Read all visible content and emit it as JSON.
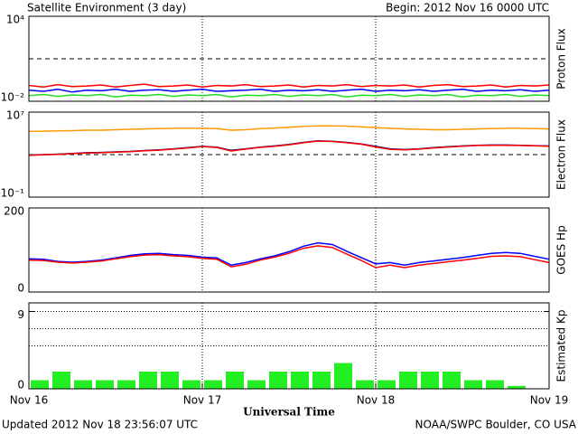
{
  "title": "Satellite Environment (3 day)",
  "begin": "Begin:  2012 Nov 16 0000 UTC",
  "updated": "Updated 2012 Nov 18 23:56:07 UTC",
  "credit": "NOAA/SWPC Boulder, CO USA",
  "xlabel": "Universal Time",
  "chart_data": [
    {
      "type": "line",
      "ylabel": "Proton Flux",
      "log": true,
      "ylim": [
        0.01,
        10000
      ],
      "yticks": [
        {
          "value": 10000,
          "label": "10⁴"
        },
        {
          "value": 0.01,
          "label": "10⁻²"
        }
      ],
      "hlines": [
        10
      ],
      "hline_style": "dashed",
      "xlim": [
        0,
        72
      ],
      "xgrid": [
        24,
        48
      ],
      "x": [
        0,
        2,
        4,
        6,
        8,
        10,
        12,
        14,
        16,
        18,
        20,
        22,
        24,
        26,
        28,
        30,
        32,
        34,
        36,
        38,
        40,
        42,
        44,
        46,
        48,
        50,
        52,
        54,
        56,
        58,
        60,
        62,
        64,
        66,
        68,
        70,
        72
      ],
      "series": [
        {
          "color": "#ff0000",
          "values": [
            0.13,
            0.1,
            0.15,
            0.11,
            0.12,
            0.14,
            0.1,
            0.13,
            0.16,
            0.11,
            0.12,
            0.14,
            0.1,
            0.13,
            0.12,
            0.15,
            0.11,
            0.12,
            0.14,
            0.1,
            0.13,
            0.12,
            0.15,
            0.11,
            0.13,
            0.12,
            0.14,
            0.1,
            0.13,
            0.15,
            0.11,
            0.12,
            0.14,
            0.1,
            0.13,
            0.12,
            0.14
          ]
        },
        {
          "color": "#0000ff",
          "values": [
            0.06,
            0.05,
            0.07,
            0.045,
            0.06,
            0.055,
            0.07,
            0.05,
            0.06,
            0.065,
            0.05,
            0.06,
            0.07,
            0.05,
            0.055,
            0.06,
            0.07,
            0.05,
            0.06,
            0.055,
            0.065,
            0.05,
            0.06,
            0.07,
            0.05,
            0.06,
            0.055,
            0.065,
            0.05,
            0.06,
            0.07,
            0.05,
            0.06,
            0.055,
            0.065,
            0.05,
            0.06
          ]
        },
        {
          "color": "#22dd22",
          "values": [
            0.025,
            0.03,
            0.022,
            0.028,
            0.025,
            0.03,
            0.02,
            0.027,
            0.025,
            0.03,
            0.022,
            0.028,
            0.025,
            0.03,
            0.02,
            0.027,
            0.025,
            0.03,
            0.022,
            0.028,
            0.025,
            0.03,
            0.02,
            0.027,
            0.025,
            0.03,
            0.022,
            0.028,
            0.025,
            0.03,
            0.02,
            0.027,
            0.025,
            0.03,
            0.022,
            0.028,
            0.025
          ]
        }
      ]
    },
    {
      "type": "line",
      "ylabel": "Electron Flux",
      "log": true,
      "ylim": [
        0.1,
        10000000
      ],
      "yticks": [
        {
          "value": 10000000,
          "label": "10⁷"
        },
        {
          "value": 0.1,
          "label": "10⁻¹"
        }
      ],
      "hlines": [
        1000
      ],
      "hline_style": "dashed",
      "xlim": [
        0,
        72
      ],
      "xgrid": [
        24,
        48
      ],
      "x": [
        0,
        2,
        4,
        6,
        8,
        10,
        12,
        14,
        16,
        18,
        20,
        22,
        24,
        26,
        28,
        30,
        32,
        34,
        36,
        38,
        40,
        42,
        44,
        46,
        48,
        50,
        52,
        54,
        56,
        58,
        60,
        62,
        64,
        66,
        68,
        70,
        72
      ],
      "series": [
        {
          "color": "#ff9900",
          "values": [
            150000,
            160000,
            170000,
            180000,
            200000,
            200000,
            220000,
            240000,
            260000,
            280000,
            300000,
            300000,
            300000,
            280000,
            200000,
            220000,
            280000,
            320000,
            380000,
            450000,
            500000,
            500000,
            480000,
            420000,
            350000,
            300000,
            260000,
            240000,
            220000,
            220000,
            240000,
            260000,
            280000,
            300000,
            300000,
            280000,
            260000
          ]
        },
        {
          "color": "#000080",
          "values": [
            900,
            1000,
            1100,
            1300,
            1500,
            1600,
            1800,
            2000,
            2400,
            2800,
            3500,
            4500,
            6000,
            5000,
            2500,
            3500,
            5000,
            6500,
            9000,
            14000,
            20000,
            18000,
            14000,
            10000,
            6000,
            3500,
            3000,
            3500,
            4500,
            5500,
            6500,
            7500,
            8000,
            8000,
            7500,
            7000,
            6500
          ]
        },
        {
          "color": "#ff0000",
          "values": [
            850,
            950,
            1050,
            1250,
            1400,
            1500,
            1700,
            1900,
            2300,
            2600,
            3300,
            4300,
            5700,
            4700,
            2200,
            3300,
            4800,
            6200,
            8500,
            13000,
            19000,
            17000,
            13000,
            9500,
            5200,
            3200,
            2800,
            3300,
            4300,
            5200,
            6200,
            7200,
            7600,
            7600,
            7200,
            6700,
            6200
          ]
        }
      ]
    },
    {
      "type": "line",
      "ylabel": "GOES Hp",
      "log": false,
      "ylim": [
        0,
        200
      ],
      "yticks": [
        200,
        0
      ],
      "xlim": [
        0,
        72
      ],
      "xgrid": [
        24,
        48
      ],
      "x": [
        0,
        2,
        4,
        6,
        8,
        10,
        12,
        14,
        16,
        18,
        20,
        22,
        24,
        26,
        28,
        30,
        32,
        34,
        36,
        38,
        40,
        42,
        44,
        46,
        48,
        50,
        52,
        54,
        56,
        58,
        60,
        62,
        64,
        66,
        68,
        70,
        72
      ],
      "series": [
        {
          "color": "#0000ff",
          "values": [
            79,
            78,
            73,
            71,
            73,
            76,
            81,
            87,
            91,
            92,
            89,
            87,
            83,
            81,
            64,
            70,
            79,
            86,
            96,
            109,
            117,
            113,
            97,
            82,
            67,
            70,
            64,
            70,
            74,
            78,
            82,
            87,
            92,
            94,
            92,
            85,
            78
          ]
        },
        {
          "color": "#ff0000",
          "values": [
            76,
            75,
            71,
            69,
            71,
            74,
            79,
            84,
            88,
            89,
            86,
            84,
            80,
            78,
            60,
            66,
            76,
            83,
            92,
            104,
            110,
            106,
            90,
            75,
            58,
            64,
            58,
            64,
            68,
            72,
            76,
            80,
            85,
            86,
            84,
            77,
            70
          ]
        }
      ]
    },
    {
      "type": "bar",
      "ylabel": "Estimated Kp",
      "log": false,
      "ylim": [
        0,
        10
      ],
      "yticks": [
        9,
        0
      ],
      "hlines": [
        5,
        7,
        9
      ],
      "hline_style": "dotted",
      "xlim": [
        0,
        72
      ],
      "xgrid": [
        24,
        48
      ],
      "bar_width": 2.5,
      "color": "#22ee22",
      "xticks": [
        {
          "value": 0,
          "label": "Nov 16"
        },
        {
          "value": 24,
          "label": "Nov 17"
        },
        {
          "value": 48,
          "label": "Nov 18"
        },
        {
          "value": 72,
          "label": "Nov 19"
        }
      ],
      "x": [
        1.5,
        4.5,
        7.5,
        10.5,
        13.5,
        16.5,
        19.5,
        22.5,
        25.5,
        28.5,
        31.5,
        34.5,
        37.5,
        40.5,
        43.5,
        46.5,
        49.5,
        52.5,
        55.5,
        58.5,
        61.5,
        64.5,
        67.5,
        70.5
      ],
      "values": [
        1,
        2,
        1,
        1,
        1,
        2,
        2,
        1,
        1,
        2,
        1,
        2,
        2,
        2,
        3,
        1,
        1,
        2,
        2,
        2,
        1,
        1,
        0.33,
        0
      ]
    }
  ]
}
